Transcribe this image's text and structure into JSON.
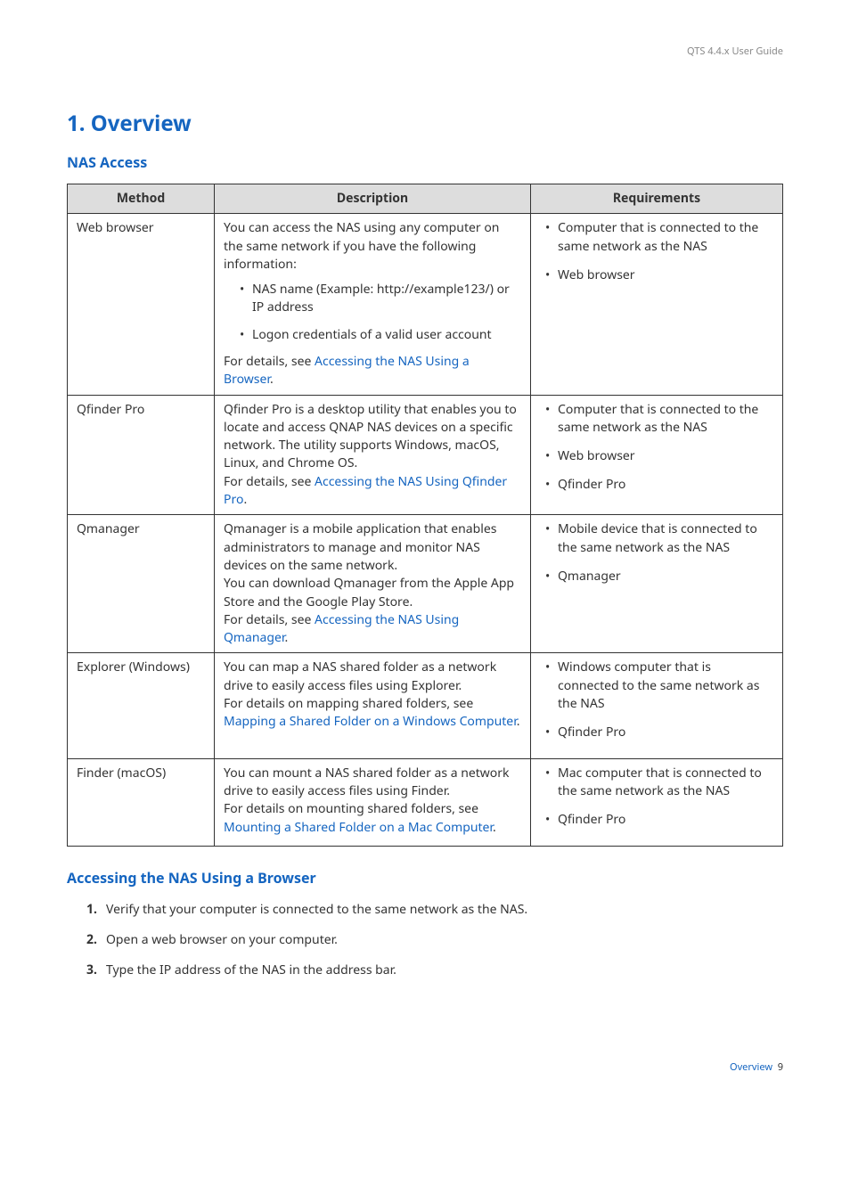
{
  "header": {
    "guide": "QTS 4.4.x User Guide"
  },
  "h1": "1. Overview",
  "h2a": "NAS Access",
  "table": {
    "headers": {
      "method": "Method",
      "description": "Description",
      "requirements": "Requirements"
    },
    "rows": {
      "r0": {
        "method": "Web browser",
        "desc_p1": "You can access the NAS using any computer on the same network if you have the following information:",
        "desc_b1": "NAS name (Example: http://example123/) or IP address",
        "desc_b2": "Logon credentials of a valid user account",
        "desc_p2_pre": "For details, see ",
        "desc_p2_link": "Accessing the NAS Using a Browser",
        "desc_p2_post": ".",
        "req1": "Computer that is connected to the same network as the NAS",
        "req2": "Web browser"
      },
      "r1": {
        "method": "Qfinder Pro",
        "desc_p1": "Qfinder Pro is a desktop utility that enables you to locate and access QNAP NAS devices on a specific network. The utility supports Windows, macOS, Linux, and Chrome OS.",
        "desc_p2_pre": "For details, see ",
        "desc_p2_link": "Accessing the NAS Using Qfinder Pro",
        "desc_p2_post": ".",
        "req1": "Computer that is connected to the same network as the NAS",
        "req2": "Web browser",
        "req3": "Qfinder Pro"
      },
      "r2": {
        "method": "Qmanager",
        "desc_p1": "Qmanager is a mobile application that enables administrators to manage and monitor NAS devices on the same network.",
        "desc_p2": "You can download Qmanager from the Apple App Store and the Google Play Store.",
        "desc_p3_pre": "For details, see ",
        "desc_p3_link": "Accessing the NAS Using Qmanager",
        "desc_p3_post": ".",
        "req1": "Mobile device that is connected to the same network as the NAS",
        "req2": "Qmanager"
      },
      "r3": {
        "method": "Explorer (Windows)",
        "desc_p1": "You can map a NAS shared folder as a network drive to easily access files using Explorer.",
        "desc_p2_pre": "For details on mapping shared folders, see ",
        "desc_p2_link": "Mapping a Shared Folder on a Windows Computer",
        "desc_p2_post": ".",
        "req1": "Windows computer that is connected to the same network as the NAS",
        "req2": "Qfinder Pro"
      },
      "r4": {
        "method": "Finder (macOS)",
        "desc_p1": "You can mount a NAS shared folder as a network drive to easily access files using Finder.",
        "desc_p2_pre": "For details on mounting shared folders, see ",
        "desc_p2_link": "Mounting a Shared Folder on a Mac Computer",
        "desc_p2_post": ".",
        "req1": "Mac computer that is connected to the same network as the NAS",
        "req2": "Qfinder Pro"
      }
    }
  },
  "h2b": "Accessing the NAS Using a Browser",
  "steps": {
    "s1": "Verify that your computer is connected to the same network as the NAS.",
    "s2": "Open a web browser on your computer.",
    "s3": "Type the IP address of the NAS in the address bar."
  },
  "footer": {
    "label": "Overview",
    "page": "9"
  }
}
